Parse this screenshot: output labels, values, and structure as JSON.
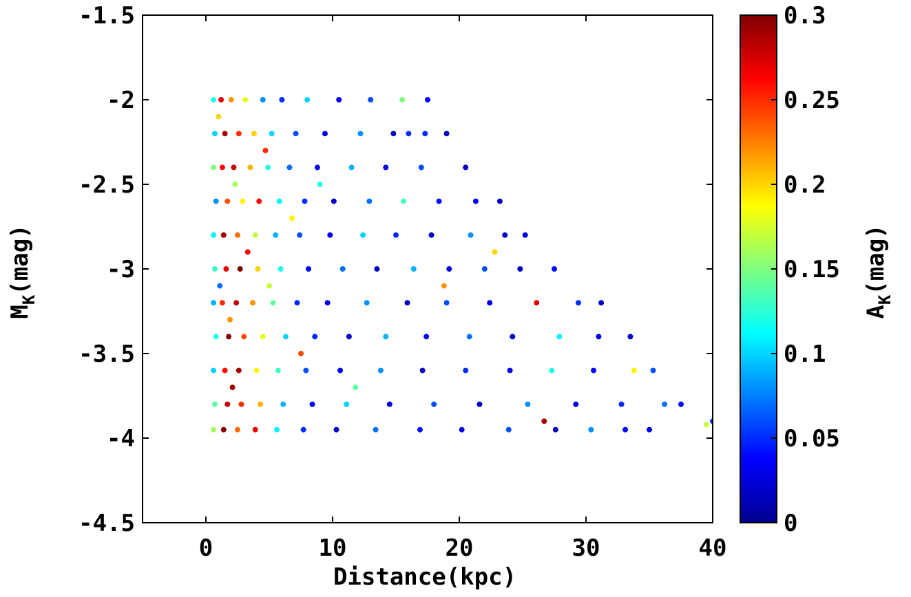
{
  "chart_data": {
    "type": "scatter",
    "xlabel": "Distance(kpc)",
    "ylabel_main": "M",
    "ylabel_sub": "K",
    "ylabel_unit": "(mag)",
    "xlim": [
      -5,
      40
    ],
    "ylim": [
      -4.5,
      -1.5
    ],
    "x_ticks": [
      0,
      10,
      20,
      30,
      40
    ],
    "x_tick_labels": [
      "0",
      "10",
      "20",
      "30",
      "40"
    ],
    "y_ticks": [
      -1.5,
      -2,
      -2.5,
      -3,
      -3.5,
      -4,
      -4.5
    ],
    "y_tick_labels": [
      "-1.5",
      "-2",
      "-2.5",
      "-3",
      "-3.5",
      "-4",
      "-4.5"
    ],
    "grid": false,
    "colorbar": {
      "label_main": "A",
      "label_sub": "K",
      "label_unit": "(mag)",
      "colormap": "jet",
      "range": [
        0,
        0.3
      ],
      "ticks": [
        0,
        0.05,
        0.1,
        0.15,
        0.2,
        0.25,
        0.3
      ],
      "tick_labels": [
        "0",
        "0.05",
        "0.1",
        "0.15",
        "0.2",
        "0.25",
        "0.3"
      ]
    },
    "point_fields": [
      "distance_kpc",
      "M_K_mag",
      "A_K_mag"
    ],
    "points": [
      [
        0.6,
        -2.0,
        0.12
      ],
      [
        1.2,
        -2.0,
        0.27
      ],
      [
        2.0,
        -2.0,
        0.22
      ],
      [
        3.1,
        -2.0,
        0.18
      ],
      [
        4.5,
        -2.0,
        0.08
      ],
      [
        6.0,
        -2.0,
        0.05
      ],
      [
        8.0,
        -2.0,
        0.1
      ],
      [
        10.5,
        -2.0,
        0.03
      ],
      [
        13.0,
        -2.0,
        0.06
      ],
      [
        15.5,
        -2.0,
        0.15
      ],
      [
        17.5,
        -2.0,
        0.04
      ],
      [
        0.7,
        -2.2,
        0.1
      ],
      [
        1.5,
        -2.2,
        0.29
      ],
      [
        2.6,
        -2.2,
        0.25
      ],
      [
        3.8,
        -2.2,
        0.2
      ],
      [
        5.2,
        -2.2,
        0.1
      ],
      [
        7.1,
        -2.2,
        0.06
      ],
      [
        9.4,
        -2.2,
        0.03
      ],
      [
        12.2,
        -2.2,
        0.08
      ],
      [
        14.8,
        -2.2,
        0.02
      ],
      [
        17.3,
        -2.2,
        0.05
      ],
      [
        19.0,
        -2.2,
        0.02
      ],
      [
        0.6,
        -2.4,
        0.15
      ],
      [
        1.3,
        -2.4,
        0.26
      ],
      [
        2.2,
        -2.4,
        0.28
      ],
      [
        3.5,
        -2.4,
        0.21
      ],
      [
        4.9,
        -2.4,
        0.12
      ],
      [
        6.6,
        -2.4,
        0.07
      ],
      [
        8.8,
        -2.4,
        0.04
      ],
      [
        11.5,
        -2.4,
        0.09
      ],
      [
        14.2,
        -2.4,
        0.03
      ],
      [
        17.0,
        -2.4,
        0.06
      ],
      [
        20.5,
        -2.4,
        0.02
      ],
      [
        0.8,
        -2.6,
        0.08
      ],
      [
        1.7,
        -2.6,
        0.24
      ],
      [
        2.9,
        -2.6,
        0.19
      ],
      [
        4.2,
        -2.6,
        0.26
      ],
      [
        5.8,
        -2.6,
        0.11
      ],
      [
        7.8,
        -2.6,
        0.05
      ],
      [
        10.1,
        -2.6,
        0.02
      ],
      [
        12.9,
        -2.6,
        0.07
      ],
      [
        15.6,
        -2.6,
        0.13
      ],
      [
        18.4,
        -2.6,
        0.04
      ],
      [
        21.3,
        -2.6,
        0.03
      ],
      [
        23.2,
        -2.6,
        0.02
      ],
      [
        0.6,
        -2.8,
        0.11
      ],
      [
        1.4,
        -2.8,
        0.29
      ],
      [
        2.5,
        -2.8,
        0.23
      ],
      [
        3.9,
        -2.8,
        0.17
      ],
      [
        5.5,
        -2.8,
        0.09
      ],
      [
        7.4,
        -2.8,
        0.06
      ],
      [
        9.8,
        -2.8,
        0.03
      ],
      [
        12.4,
        -2.8,
        0.1
      ],
      [
        15.0,
        -2.8,
        0.05
      ],
      [
        17.8,
        -2.8,
        0.02
      ],
      [
        20.9,
        -2.8,
        0.08
      ],
      [
        23.6,
        -2.8,
        0.02
      ],
      [
        25.2,
        -2.8,
        0.03
      ],
      [
        0.7,
        -3.0,
        0.13
      ],
      [
        1.6,
        -3.0,
        0.27
      ],
      [
        2.7,
        -3.0,
        0.3
      ],
      [
        4.1,
        -3.0,
        0.2
      ],
      [
        5.9,
        -3.0,
        0.12
      ],
      [
        8.1,
        -3.0,
        0.04
      ],
      [
        10.8,
        -3.0,
        0.07
      ],
      [
        13.5,
        -3.0,
        0.02
      ],
      [
        16.4,
        -3.0,
        0.09
      ],
      [
        19.2,
        -3.0,
        0.03
      ],
      [
        22.0,
        -3.0,
        0.06
      ],
      [
        24.8,
        -3.0,
        0.02
      ],
      [
        27.5,
        -3.0,
        0.04
      ],
      [
        0.6,
        -3.2,
        0.09
      ],
      [
        1.3,
        -3.2,
        0.25
      ],
      [
        2.4,
        -3.2,
        0.28
      ],
      [
        3.7,
        -3.2,
        0.22
      ],
      [
        5.3,
        -3.2,
        0.14
      ],
      [
        7.2,
        -3.2,
        0.05
      ],
      [
        9.6,
        -3.2,
        0.03
      ],
      [
        12.7,
        -3.2,
        0.08
      ],
      [
        15.9,
        -3.2,
        0.02
      ],
      [
        19.0,
        -3.2,
        0.06
      ],
      [
        22.4,
        -3.2,
        0.03
      ],
      [
        26.1,
        -3.2,
        0.27
      ],
      [
        29.4,
        -3.2,
        0.05
      ],
      [
        31.2,
        -3.2,
        0.02
      ],
      [
        0.8,
        -3.4,
        0.12
      ],
      [
        1.8,
        -3.4,
        0.3
      ],
      [
        3.0,
        -3.4,
        0.24
      ],
      [
        4.5,
        -3.4,
        0.18
      ],
      [
        6.3,
        -3.4,
        0.1
      ],
      [
        8.6,
        -3.4,
        0.05
      ],
      [
        11.3,
        -3.4,
        0.02
      ],
      [
        14.2,
        -3.4,
        0.09
      ],
      [
        17.4,
        -3.4,
        0.04
      ],
      [
        20.8,
        -3.4,
        0.07
      ],
      [
        24.2,
        -3.4,
        0.02
      ],
      [
        27.9,
        -3.4,
        0.11
      ],
      [
        31.0,
        -3.4,
        0.03
      ],
      [
        33.5,
        -3.4,
        0.02
      ],
      [
        0.6,
        -3.6,
        0.1
      ],
      [
        1.5,
        -3.6,
        0.26
      ],
      [
        2.6,
        -3.6,
        0.29
      ],
      [
        4.0,
        -3.6,
        0.19
      ],
      [
        5.7,
        -3.6,
        0.13
      ],
      [
        7.9,
        -3.6,
        0.06
      ],
      [
        10.6,
        -3.6,
        0.03
      ],
      [
        13.8,
        -3.6,
        0.08
      ],
      [
        17.1,
        -3.6,
        0.02
      ],
      [
        20.5,
        -3.6,
        0.05
      ],
      [
        24.0,
        -3.6,
        0.03
      ],
      [
        27.3,
        -3.6,
        0.12
      ],
      [
        30.6,
        -3.6,
        0.04
      ],
      [
        33.8,
        -3.6,
        0.19
      ],
      [
        35.3,
        -3.6,
        0.06
      ],
      [
        0.7,
        -3.8,
        0.14
      ],
      [
        1.7,
        -3.8,
        0.28
      ],
      [
        2.8,
        -3.8,
        0.25
      ],
      [
        4.3,
        -3.8,
        0.21
      ],
      [
        6.1,
        -3.8,
        0.09
      ],
      [
        8.4,
        -3.8,
        0.04
      ],
      [
        11.1,
        -3.8,
        0.1
      ],
      [
        14.5,
        -3.8,
        0.03
      ],
      [
        18.0,
        -3.8,
        0.06
      ],
      [
        21.6,
        -3.8,
        0.02
      ],
      [
        25.4,
        -3.8,
        0.08
      ],
      [
        29.2,
        -3.8,
        0.03
      ],
      [
        32.8,
        -3.8,
        0.05
      ],
      [
        36.2,
        -3.8,
        0.07
      ],
      [
        37.5,
        -3.8,
        0.04
      ],
      [
        0.6,
        -3.95,
        0.16
      ],
      [
        1.4,
        -3.95,
        0.3
      ],
      [
        2.5,
        -3.95,
        0.23
      ],
      [
        3.9,
        -3.95,
        0.27
      ],
      [
        5.6,
        -3.95,
        0.11
      ],
      [
        7.7,
        -3.95,
        0.05
      ],
      [
        10.3,
        -3.95,
        0.02
      ],
      [
        13.4,
        -3.95,
        0.07
      ],
      [
        16.9,
        -3.95,
        0.04
      ],
      [
        20.2,
        -3.95,
        0.03
      ],
      [
        23.9,
        -3.95,
        0.06
      ],
      [
        27.6,
        -3.95,
        0.02
      ],
      [
        30.4,
        -3.95,
        0.08
      ],
      [
        33.1,
        -3.95,
        0.04
      ],
      [
        35.0,
        -3.95,
        0.03
      ],
      [
        39.5,
        -3.92,
        0.17
      ],
      [
        40.0,
        -3.9,
        0.05
      ],
      [
        1.0,
        -2.1,
        0.2
      ],
      [
        2.3,
        -2.5,
        0.16
      ],
      [
        3.3,
        -2.9,
        0.26
      ],
      [
        1.9,
        -3.3,
        0.22
      ],
      [
        2.1,
        -3.7,
        0.29
      ],
      [
        1.1,
        -3.1,
        0.07
      ],
      [
        4.7,
        -2.3,
        0.25
      ],
      [
        5.0,
        -3.1,
        0.17
      ],
      [
        6.8,
        -2.7,
        0.19
      ],
      [
        7.5,
        -3.5,
        0.24
      ],
      [
        9.0,
        -2.5,
        0.12
      ],
      [
        11.8,
        -3.7,
        0.14
      ],
      [
        16.0,
        -2.2,
        0.05
      ],
      [
        18.8,
        -3.1,
        0.22
      ],
      [
        22.8,
        -2.9,
        0.2
      ],
      [
        26.7,
        -3.9,
        0.29
      ]
    ]
  }
}
